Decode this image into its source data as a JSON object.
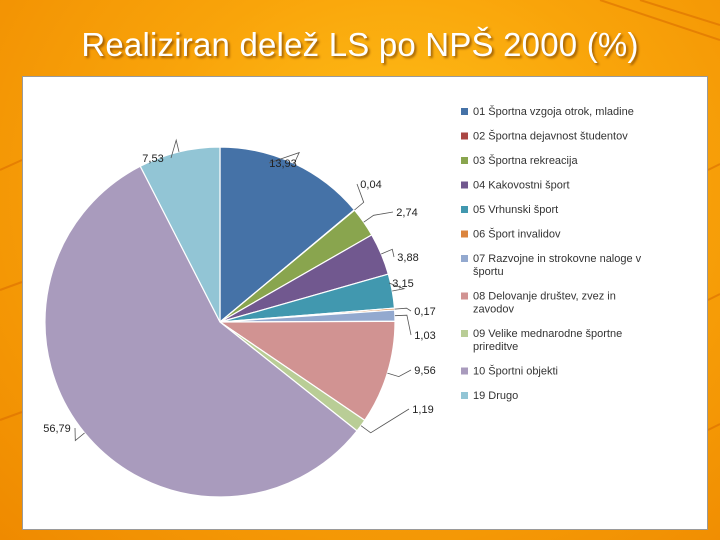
{
  "page": {
    "title": "Realiziran delež LS po NPŠ 2000 (%)"
  },
  "colors": {
    "background": "#f9a40a",
    "panel": "#ffffff"
  },
  "chart_data": {
    "type": "pie",
    "categories": [
      "01 Športna vzgoja otrok, mladine",
      "02 Športna dejavnost študentov",
      "03 Športna rekreacija",
      "04 Kakovostni šport",
      "05 Vrhunski šport",
      "06 Šport invalidov",
      "07 Razvojne in strokovne naloge v športu",
      "08 Delovanje društev, zvez in zavodov",
      "09 Velike mednarodne športne prireditve",
      "10 Športni objekti",
      "19 Drugo"
    ],
    "values": [
      13.93,
      0.04,
      2.74,
      3.88,
      3.15,
      0.17,
      1.03,
      9.56,
      1.19,
      56.79,
      7.53
    ],
    "value_labels": [
      "13,93",
      "0,04",
      "2,74",
      "3,88",
      "3,15",
      "0,17",
      "1,03",
      "9,56",
      "1,19",
      "56,79",
      "7,53"
    ],
    "colors": [
      "#4572a7",
      "#aa4643",
      "#89a54e",
      "#71588f",
      "#4198af",
      "#db843d",
      "#93a9cf",
      "#d19392",
      "#b9cd96",
      "#a99bbd",
      "#92c5d5"
    ],
    "legend_position": "right"
  }
}
